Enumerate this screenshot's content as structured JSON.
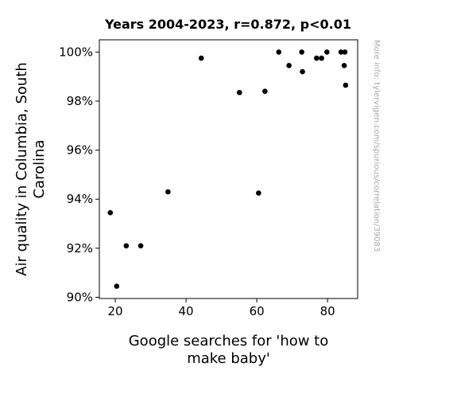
{
  "chart_data": {
    "type": "scatter",
    "title": "Years 2004-2023, r=0.872, p<0.01",
    "xlabel": [
      "Google searches for 'how to",
      "make baby'"
    ],
    "ylabel": [
      "Air quality in Columbia, South",
      "Carolina"
    ],
    "side_note": "More info: tylervigen.com/spurious/correlation/39083",
    "xlim": [
      15.5,
      88.5
    ],
    "ylim": [
      89.95,
      100.5
    ],
    "x_ticks": [
      20,
      40,
      60,
      80
    ],
    "x_tick_labels": [
      "20",
      "40",
      "60",
      "80"
    ],
    "y_ticks": [
      90,
      92,
      94,
      96,
      98,
      100
    ],
    "y_tick_labels": [
      "90%",
      "92%",
      "94%",
      "96%",
      "98%",
      "100%"
    ],
    "grid": false,
    "marker_color": "#000000",
    "points": [
      {
        "x": 18.6,
        "y": 93.45
      },
      {
        "x": 20.4,
        "y": 90.45
      },
      {
        "x": 23.1,
        "y": 92.1
      },
      {
        "x": 27.2,
        "y": 92.1
      },
      {
        "x": 34.9,
        "y": 94.3
      },
      {
        "x": 44.3,
        "y": 99.75
      },
      {
        "x": 55.1,
        "y": 98.35
      },
      {
        "x": 60.5,
        "y": 94.25
      },
      {
        "x": 62.3,
        "y": 98.4
      },
      {
        "x": 66.2,
        "y": 100.0
      },
      {
        "x": 69.1,
        "y": 99.45
      },
      {
        "x": 72.7,
        "y": 100.0
      },
      {
        "x": 72.9,
        "y": 99.2
      },
      {
        "x": 76.9,
        "y": 99.75
      },
      {
        "x": 78.3,
        "y": 99.75
      },
      {
        "x": 79.8,
        "y": 100.0
      },
      {
        "x": 83.8,
        "y": 100.0
      },
      {
        "x": 84.7,
        "y": 99.45
      },
      {
        "x": 84.9,
        "y": 100.0
      },
      {
        "x": 85.1,
        "y": 98.65
      }
    ]
  }
}
